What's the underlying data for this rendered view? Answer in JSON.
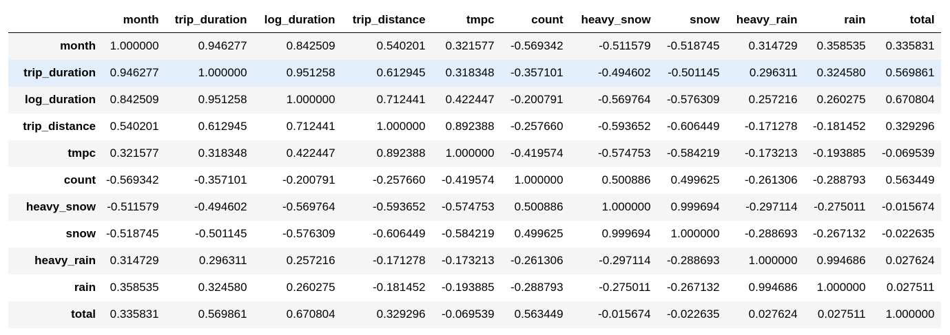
{
  "table": {
    "columns": [
      "month",
      "trip_duration",
      "log_duration",
      "trip_distance",
      "tmpc",
      "count",
      "heavy_snow",
      "snow",
      "heavy_rain",
      "rain",
      "total"
    ],
    "highlight_row": 1,
    "rows": [
      {
        "index": "month",
        "values": [
          "1.000000",
          "0.946277",
          "0.842509",
          "0.540201",
          "0.321577",
          "-0.569342",
          "-0.511579",
          "-0.518745",
          "0.314729",
          "0.358535",
          "0.335831"
        ]
      },
      {
        "index": "trip_duration",
        "values": [
          "0.946277",
          "1.000000",
          "0.951258",
          "0.612945",
          "0.318348",
          "-0.357101",
          "-0.494602",
          "-0.501145",
          "0.296311",
          "0.324580",
          "0.569861"
        ]
      },
      {
        "index": "log_duration",
        "values": [
          "0.842509",
          "0.951258",
          "1.000000",
          "0.712441",
          "0.422447",
          "-0.200791",
          "-0.569764",
          "-0.576309",
          "0.257216",
          "0.260275",
          "0.670804"
        ]
      },
      {
        "index": "trip_distance",
        "values": [
          "0.540201",
          "0.612945",
          "0.712441",
          "1.000000",
          "0.892388",
          "-0.257660",
          "-0.593652",
          "-0.606449",
          "-0.171278",
          "-0.181452",
          "0.329296"
        ]
      },
      {
        "index": "tmpc",
        "values": [
          "0.321577",
          "0.318348",
          "0.422447",
          "0.892388",
          "1.000000",
          "-0.419574",
          "-0.574753",
          "-0.584219",
          "-0.173213",
          "-0.193885",
          "-0.069539"
        ]
      },
      {
        "index": "count",
        "values": [
          "-0.569342",
          "-0.357101",
          "-0.200791",
          "-0.257660",
          "-0.419574",
          "1.000000",
          "0.500886",
          "0.499625",
          "-0.261306",
          "-0.288793",
          "0.563449"
        ]
      },
      {
        "index": "heavy_snow",
        "values": [
          "-0.511579",
          "-0.494602",
          "-0.569764",
          "-0.593652",
          "-0.574753",
          "0.500886",
          "1.000000",
          "0.999694",
          "-0.297114",
          "-0.275011",
          "-0.015674"
        ]
      },
      {
        "index": "snow",
        "values": [
          "-0.518745",
          "-0.501145",
          "-0.576309",
          "-0.606449",
          "-0.584219",
          "0.499625",
          "0.999694",
          "1.000000",
          "-0.288693",
          "-0.267132",
          "-0.022635"
        ]
      },
      {
        "index": "heavy_rain",
        "values": [
          "0.314729",
          "0.296311",
          "0.257216",
          "-0.171278",
          "-0.173213",
          "-0.261306",
          "-0.297114",
          "-0.288693",
          "1.000000",
          "0.994686",
          "0.027624"
        ]
      },
      {
        "index": "rain",
        "values": [
          "0.358535",
          "0.324580",
          "0.260275",
          "-0.181452",
          "-0.193885",
          "-0.288793",
          "-0.275011",
          "-0.267132",
          "0.994686",
          "1.000000",
          "0.027511"
        ]
      },
      {
        "index": "total",
        "values": [
          "0.335831",
          "0.569861",
          "0.670804",
          "0.329296",
          "-0.069539",
          "0.563449",
          "-0.015674",
          "-0.022635",
          "0.027624",
          "0.027511",
          "1.000000"
        ]
      }
    ]
  },
  "colors": {
    "striped_row": "#f5f5f5",
    "hover_row": "#e2effa",
    "header_border": "#000000"
  }
}
